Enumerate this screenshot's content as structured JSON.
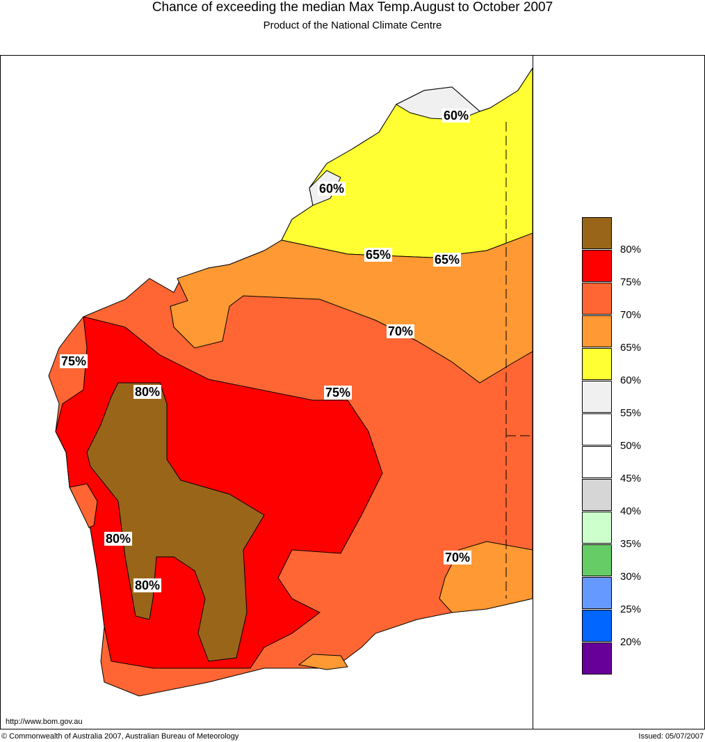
{
  "header": {
    "title": "Chance of exceeding the median Max Temp.August to October 2007",
    "subtitle": "Product of the National Climate Centre"
  },
  "map_labels": [
    {
      "text": "60%",
      "region": "north-kimberley-coast"
    },
    {
      "text": "60%",
      "region": "dampier-peninsula"
    },
    {
      "text": "65%",
      "region": "central-north"
    },
    {
      "text": "65%",
      "region": "north-east"
    },
    {
      "text": "70%",
      "region": "central"
    },
    {
      "text": "75%",
      "region": "west-coast"
    },
    {
      "text": "80%",
      "region": "south-west-inland"
    },
    {
      "text": "75%",
      "region": "central-south"
    },
    {
      "text": "80%",
      "region": "south-west-coast"
    },
    {
      "text": "80%",
      "region": "south-west"
    },
    {
      "text": "70%",
      "region": "south-east"
    }
  ],
  "legend": {
    "swatches": [
      "#996619",
      "#ff0000",
      "#ff6633",
      "#ff9933",
      "#ffff33",
      "#f0f0f0",
      "#ffffff",
      "#ffffff",
      "#d6d6d6",
      "#ccffcc",
      "#66cc66",
      "#6699ff",
      "#0066ff",
      "#660099"
    ],
    "labels": [
      "80%",
      "75%",
      "70%",
      "65%",
      "60%",
      "55%",
      "50%",
      "45%",
      "40%",
      "35%",
      "30%",
      "25%",
      "20%"
    ]
  },
  "footer": {
    "url": "http://www.bom.gov.au",
    "copyright": "© Commonwealth of Australia 2007, Australian Bureau of Meteorology",
    "issued": "Issued: 05/07/2007"
  }
}
